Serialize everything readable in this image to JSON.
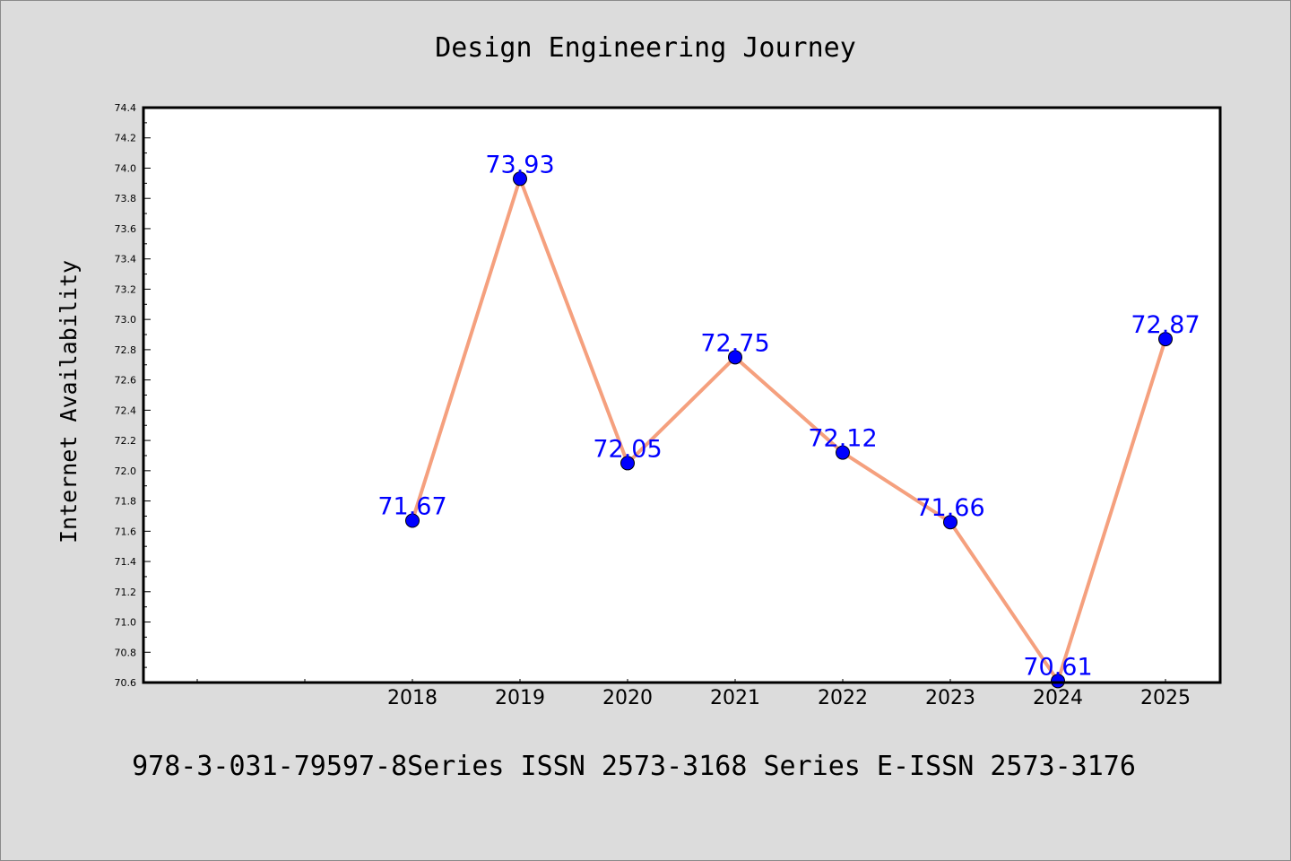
{
  "chart_data": {
    "type": "line",
    "title": "Design Engineering Journey",
    "ylabel": "Internet Availability",
    "xlabel": "",
    "categories": [
      "2018",
      "2019",
      "2020",
      "2021",
      "2022",
      "2023",
      "2024",
      "2025"
    ],
    "series": [
      {
        "values": [
          71.67,
          73.93,
          72.05,
          72.75,
          72.12,
          71.66,
          70.61,
          72.87
        ],
        "line_color": "#f5a07e",
        "marker_color": "#0000ff"
      }
    ],
    "data_labels": [
      "71.67",
      "73.93",
      "72.05",
      "72.75",
      "72.12",
      "71.66",
      "70.61",
      "72.87"
    ],
    "ylim": [
      70.6,
      74.4
    ],
    "yticks": [
      "70.6",
      "70.8",
      "71.0",
      "71.2",
      "71.4",
      "71.6",
      "71.8",
      "72.0",
      "72.2",
      "72.4",
      "72.6",
      "72.8",
      "73.0",
      "73.2",
      "73.4",
      "73.6",
      "73.8",
      "74.0",
      "74.2",
      "74.4"
    ],
    "grid": false,
    "legend": "none"
  },
  "caption": "978-3-031-79597-8Series ISSN 2573-3168 Series E-ISSN 2573-3176",
  "colors": {
    "background": "#dcdcdc",
    "plot_area": "#ffffff",
    "axis": "#000000",
    "label_color": "#0000ff"
  }
}
